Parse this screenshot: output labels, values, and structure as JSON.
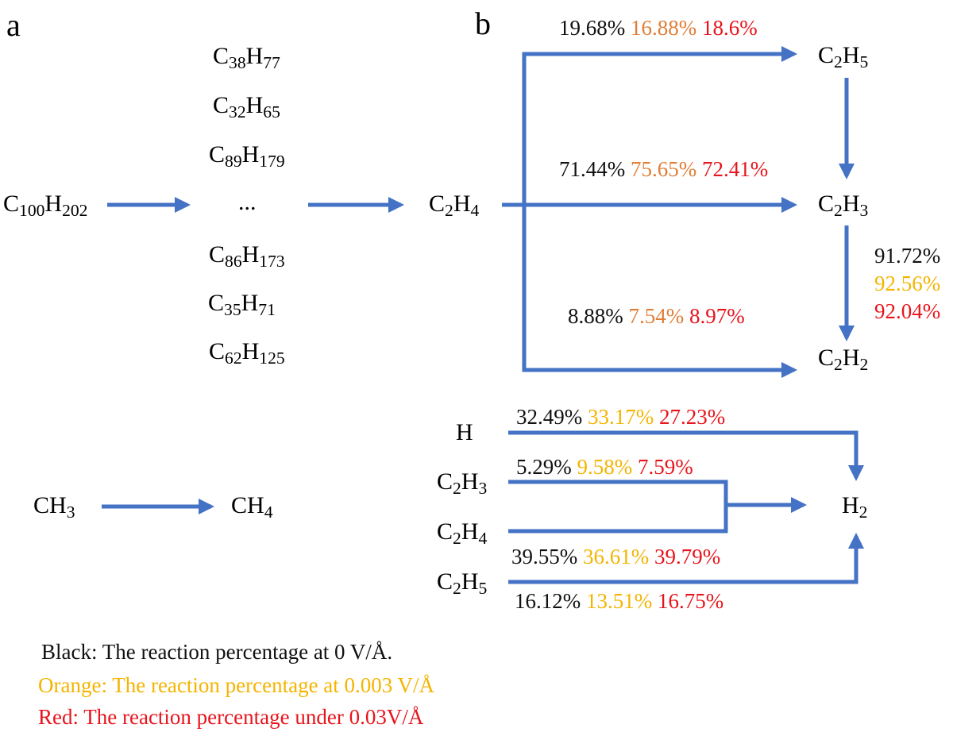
{
  "colors": {
    "arrow": "#4472c4",
    "black": "#111111",
    "orange_b_panel": "#e07e36",
    "yellow": "#f4b400",
    "red": "#e8141c"
  },
  "panel_a": {
    "label": "a",
    "source": {
      "sym": "C",
      "sub": "100",
      "sym2": "H",
      "sub2": "202"
    },
    "fragments": [
      {
        "sym": "C",
        "sub": "38",
        "sym2": "H",
        "sub2": "77"
      },
      {
        "sym": "C",
        "sub": "32",
        "sym2": "H",
        "sub2": "65"
      },
      {
        "sym": "C",
        "sub": "89",
        "sym2": "H",
        "sub2": "179"
      },
      {
        "sym": "...",
        "sub": "",
        "sym2": "",
        "sub2": ""
      },
      {
        "sym": "C",
        "sub": "86",
        "sym2": "H",
        "sub2": "173"
      },
      {
        "sym": "C",
        "sub": "35",
        "sym2": "H",
        "sub2": "71"
      },
      {
        "sym": "C",
        "sub": "62",
        "sym2": "H",
        "sub2": "125"
      }
    ],
    "product": {
      "sym": "C",
      "sub": "2",
      "sym2": "H",
      "sub2": "4"
    },
    "methyl": {
      "sym": "CH",
      "sub": "3"
    },
    "methane": {
      "sym": "CH",
      "sub": "4"
    }
  },
  "panel_b": {
    "label": "b",
    "nodes": {
      "c2h5": {
        "sym": "C",
        "sub": "2",
        "sym2": "H",
        "sub2": "5"
      },
      "c2h3": {
        "sym": "C",
        "sub": "2",
        "sym2": "H",
        "sub2": "3"
      },
      "c2h2": {
        "sym": "C",
        "sub": "2",
        "sym2": "H",
        "sub2": "2"
      }
    },
    "pct_to_c2h5": [
      "19.68%",
      "16.88%",
      "18.6%"
    ],
    "pct_to_c2h3": [
      "71.44%",
      "75.65%",
      "72.41%"
    ],
    "pct_to_c2h2": [
      "8.88%",
      "7.54%",
      "8.97%"
    ],
    "pct_c2h3_to_c2h2": [
      "91.72%",
      "92.56%",
      "92.04%"
    ],
    "h2_sources": {
      "h": {
        "sym": "H",
        "sub": ""
      },
      "c2h3": {
        "sym": "C",
        "sub": "2",
        "sym2": "H",
        "sub2": "3"
      },
      "c2h4": {
        "sym": "C",
        "sub": "2",
        "sym2": "H",
        "sub2": "4"
      },
      "c2h5": {
        "sym": "C",
        "sub": "2",
        "sym2": "H",
        "sub2": "5"
      }
    },
    "h2": {
      "sym": "H",
      "sub": "2"
    },
    "pct_h": [
      "32.49%",
      "33.17%",
      "27.23%"
    ],
    "pct_c2h3": [
      "5.29%",
      "9.58%",
      "7.59%"
    ],
    "pct_c2h4": [
      "39.55%",
      "36.61%",
      "39.79%"
    ],
    "pct_c2h5": [
      "16.12%",
      "13.51%",
      "16.75%"
    ]
  },
  "legend": {
    "black": "Black:  The reaction percentage at 0 V/Å.",
    "orange": "Orange:  The reaction percentage at 0.003 V/Å",
    "red": "Red:  The reaction percentage under 0.03V/Å"
  }
}
